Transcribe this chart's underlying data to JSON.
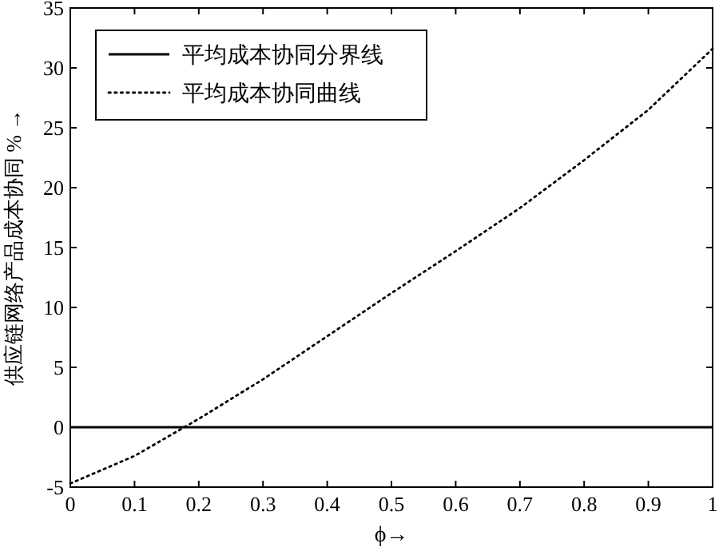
{
  "chart_data": {
    "type": "line",
    "xlabel": "ϕ→",
    "ylabel": "供应链网络产品成本协同 % →",
    "xlim": [
      0,
      1
    ],
    "ylim": [
      -5,
      35
    ],
    "xticks": [
      0,
      0.1,
      0.2,
      0.3,
      0.4,
      0.5,
      0.6,
      0.7,
      0.8,
      0.9,
      1
    ],
    "yticks": [
      -5,
      0,
      5,
      10,
      15,
      20,
      25,
      30,
      35
    ],
    "legend": "top left",
    "grid": false,
    "marker": "none",
    "series": [
      {
        "name": "平均成本协同分界线",
        "color": "#000000",
        "line_style": "solid",
        "x": [
          0,
          1
        ],
        "values": [
          0,
          0
        ]
      },
      {
        "name": "平均成本协同曲线",
        "color": "#000000",
        "line_style": "dotted",
        "x": [
          0,
          0.1,
          0.2,
          0.3,
          0.4,
          0.5,
          0.6,
          0.7,
          0.8,
          0.9,
          1
        ],
        "values": [
          -4.7,
          -2.4,
          0.7,
          4.0,
          7.6,
          11.2,
          14.7,
          18.3,
          22.3,
          26.5,
          31.6
        ]
      }
    ]
  }
}
